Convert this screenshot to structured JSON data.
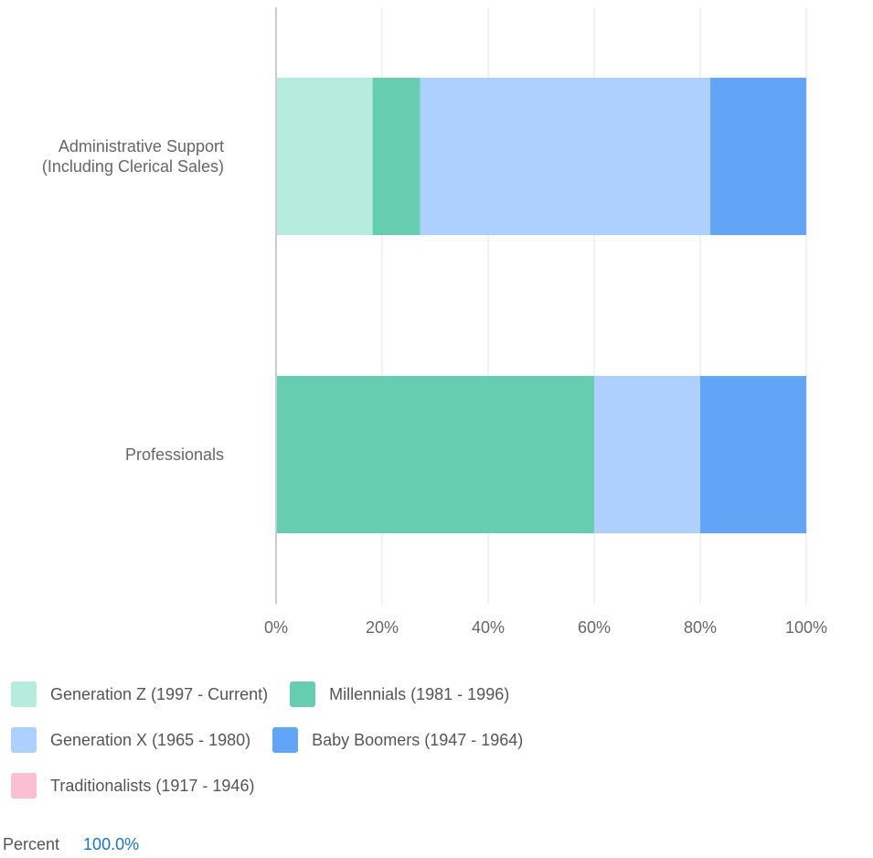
{
  "chart_data": {
    "type": "stacked_barh",
    "categories": [
      "Administrative Support\n(Including Clerical Sales)",
      "Professionals"
    ],
    "series": [
      {
        "name": "Generation Z (1997 - Current)",
        "color": "#b5ecdc",
        "values": [
          18.2,
          0
        ]
      },
      {
        "name": "Millennials (1981 - 1996)",
        "color": "#66cdb0",
        "values": [
          9.0,
          60
        ]
      },
      {
        "name": "Generation X (1965 - 1980)",
        "color": "#aed0fe",
        "values": [
          54.7,
          20
        ]
      },
      {
        "name": "Baby Boomers (1947 - 1964)",
        "color": "#62a5f7",
        "values": [
          18.1,
          20
        ]
      },
      {
        "name": "Traditionalists (1917 - 1946)",
        "color": "#fbbfd4",
        "values": [
          0,
          0
        ]
      }
    ],
    "xlim": [
      0,
      100
    ],
    "xticks": [
      {
        "value": 0,
        "label": "0%"
      },
      {
        "value": 20,
        "label": "20%"
      },
      {
        "value": 40,
        "label": "40%"
      },
      {
        "value": 60,
        "label": "60%"
      },
      {
        "value": 80,
        "label": "80%"
      },
      {
        "value": 100,
        "label": "100%"
      }
    ],
    "grid": true
  },
  "summary": {
    "label": "Percent",
    "value": "100.0%"
  }
}
